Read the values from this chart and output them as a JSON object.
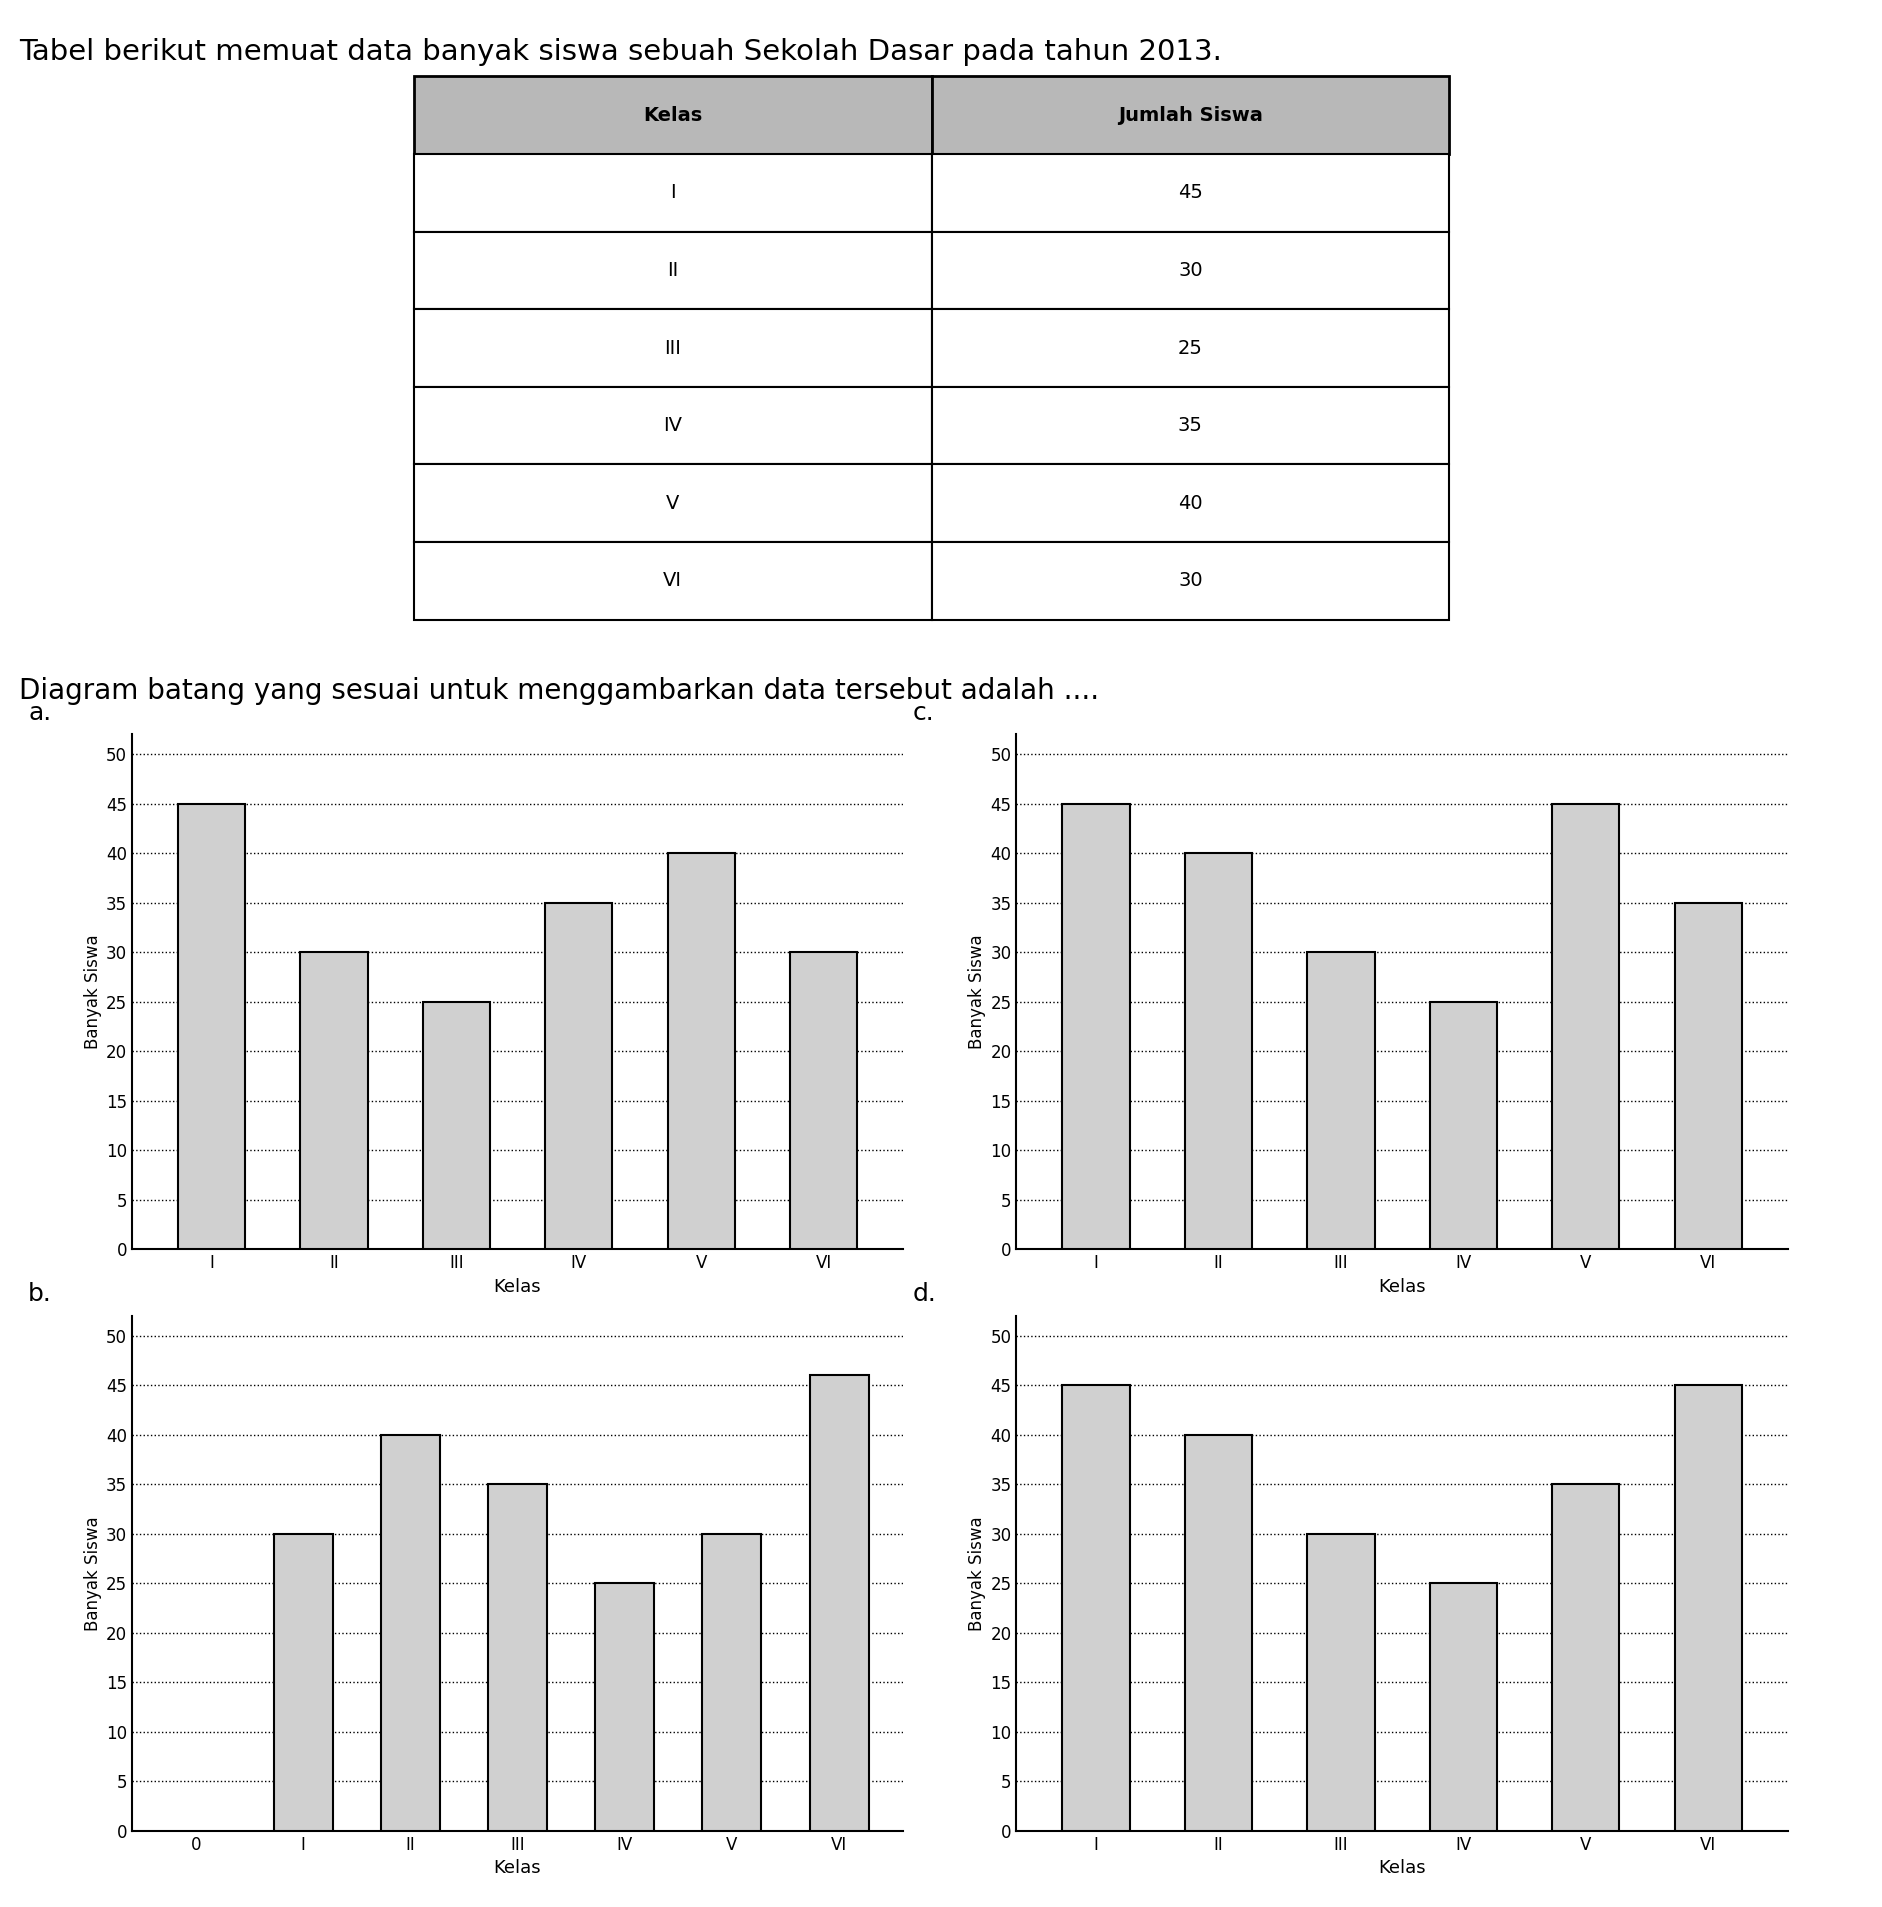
{
  "title": "Tabel berikut memuat data banyak siswa sebuah Sekolah Dasar pada tahun 2013.",
  "subtitle": "Diagram batang yang sesuai untuk menggambarkan data tersebut adalah ....",
  "table_headers": [
    "Kelas",
    "Jumlah Siswa"
  ],
  "table_rows": [
    [
      "I",
      "45"
    ],
    [
      "II",
      "30"
    ],
    [
      "III",
      "25"
    ],
    [
      "IV",
      "35"
    ],
    [
      "V",
      "40"
    ],
    [
      "VI",
      "30"
    ]
  ],
  "categories": [
    "I",
    "II",
    "III",
    "IV",
    "V",
    "VI"
  ],
  "chart_a": {
    "label": "a.",
    "values": [
      45,
      30,
      25,
      35,
      40,
      30
    ],
    "xlabel": "Kelas",
    "ylabel": "Banyak Siswa",
    "ylim": [
      0,
      52
    ],
    "yticks": [
      0,
      5,
      10,
      15,
      20,
      25,
      30,
      35,
      40,
      45,
      50
    ]
  },
  "chart_b": {
    "label": "b.",
    "values": [
      30,
      40,
      35,
      25,
      30,
      46
    ],
    "xlabel": "Kelas",
    "ylabel": "Banyak Siswa",
    "ylim": [
      0,
      52
    ],
    "yticks": [
      0,
      5,
      10,
      15,
      20,
      25,
      30,
      35,
      40,
      45,
      50
    ],
    "show_zero": true
  },
  "chart_c": {
    "label": "c.",
    "values": [
      45,
      40,
      30,
      25,
      45,
      35
    ],
    "xlabel": "Kelas",
    "ylabel": "Banyak Siswa",
    "ylim": [
      0,
      52
    ],
    "yticks": [
      0,
      5,
      10,
      15,
      20,
      25,
      30,
      35,
      40,
      45,
      50
    ]
  },
  "chart_d": {
    "label": "d.",
    "values": [
      45,
      40,
      30,
      25,
      35,
      45
    ],
    "xlabel": "Kelas",
    "ylabel": "Banyak Siswa",
    "ylim": [
      0,
      52
    ],
    "yticks": [
      0,
      5,
      10,
      15,
      20,
      25,
      30,
      35,
      40,
      45,
      50
    ]
  },
  "bar_color": "#d0d0d0",
  "bar_edgecolor": "#000000",
  "background_color": "#ffffff",
  "font_size_title": 21,
  "font_size_subtitle": 20,
  "font_size_chart_label": 18,
  "font_size_tick": 12,
  "font_size_axis": 13,
  "font_size_ylabel": 12,
  "font_size_table": 14,
  "table_header_color": "#b8b8b8"
}
